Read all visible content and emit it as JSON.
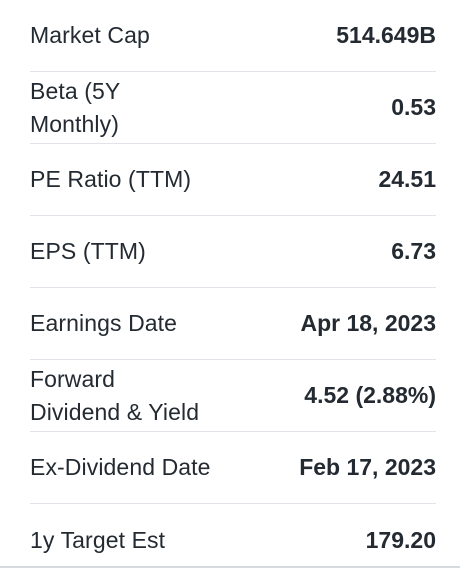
{
  "stats": [
    {
      "label": "Market Cap",
      "value": "514.649B"
    },
    {
      "label_lines": [
        "Beta (5Y",
        "Monthly)"
      ],
      "value": "0.53"
    },
    {
      "label": "PE Ratio (TTM)",
      "value": "24.51"
    },
    {
      "label": "EPS (TTM)",
      "value": "6.73"
    },
    {
      "label": "Earnings Date",
      "value": "Apr 18, 2023"
    },
    {
      "label_lines": [
        "Forward",
        "Dividend & Yield"
      ],
      "value": "4.52 (2.88%)"
    },
    {
      "label": "Ex-Dividend Date",
      "value": "Feb 17, 2023"
    },
    {
      "label": "1y Target Est",
      "value": "179.20"
    }
  ]
}
